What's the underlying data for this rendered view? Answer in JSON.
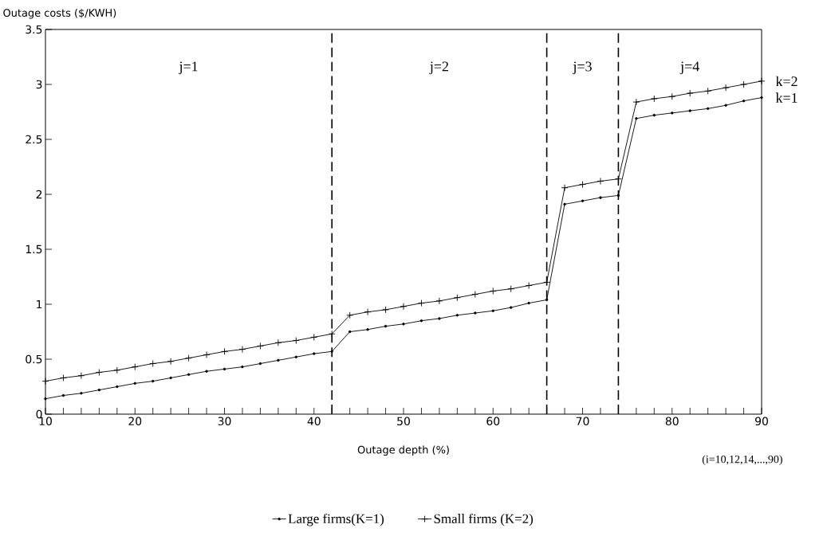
{
  "chart_data": {
    "type": "line",
    "xlabel": "Outage depth (%)",
    "ylabel": "Outage costs ($/KWH)",
    "xlim": [
      10,
      90
    ],
    "ylim": [
      0,
      3.5
    ],
    "xticks": [
      10,
      {
        "value": 12,
        "label": null
      },
      {
        "value": 14,
        "label": null
      },
      {
        "value": 16,
        "label": null
      },
      {
        "value": 18,
        "label": null
      },
      20,
      {
        "value": 22,
        "label": null
      },
      {
        "value": 24,
        "label": null
      },
      {
        "value": 26,
        "label": null
      },
      {
        "value": 28,
        "label": null
      },
      30,
      {
        "value": 32,
        "label": null
      },
      {
        "value": 34,
        "label": null
      },
      {
        "value": 36,
        "label": null
      },
      {
        "value": 38,
        "label": null
      },
      40,
      {
        "value": 42,
        "label": null
      },
      {
        "value": 44,
        "label": null
      },
      {
        "value": 46,
        "label": null
      },
      {
        "value": 48,
        "label": null
      },
      50,
      {
        "value": 52,
        "label": null
      },
      {
        "value": 54,
        "label": null
      },
      {
        "value": 56,
        "label": null
      },
      {
        "value": 58,
        "label": null
      },
      60,
      {
        "value": 62,
        "label": null
      },
      {
        "value": 64,
        "label": null
      },
      {
        "value": 66,
        "label": null
      },
      {
        "value": 68,
        "label": null
      },
      70,
      {
        "value": 72,
        "label": null
      },
      {
        "value": 74,
        "label": null
      },
      {
        "value": 76,
        "label": null
      },
      {
        "value": 78,
        "label": null
      },
      80,
      {
        "value": 82,
        "label": null
      },
      {
        "value": 84,
        "label": null
      },
      {
        "value": 86,
        "label": null
      },
      {
        "value": 88,
        "label": null
      },
      90
    ],
    "yticks": [
      0,
      0.5,
      1,
      1.5,
      2,
      2.5,
      3,
      3.5
    ],
    "x": [
      10,
      12,
      14,
      16,
      18,
      20,
      22,
      24,
      26,
      28,
      30,
      32,
      34,
      36,
      38,
      40,
      42,
      44,
      46,
      48,
      50,
      52,
      54,
      56,
      58,
      60,
      62,
      64,
      66,
      68,
      70,
      72,
      74,
      76,
      78,
      80,
      82,
      84,
      86,
      88,
      90
    ],
    "series": [
      {
        "name": "Large firms(K=1)",
        "color": "#000000",
        "marker": "circle",
        "values": [
          0.14,
          0.17,
          0.19,
          0.22,
          0.25,
          0.28,
          0.3,
          0.33,
          0.36,
          0.39,
          0.41,
          0.43,
          0.46,
          0.49,
          0.52,
          0.55,
          0.57,
          0.75,
          0.77,
          0.8,
          0.82,
          0.85,
          0.87,
          0.9,
          0.92,
          0.94,
          0.97,
          1.01,
          1.04,
          1.91,
          1.94,
          1.97,
          1.99,
          2.69,
          2.72,
          2.74,
          2.76,
          2.78,
          2.81,
          2.85,
          2.88
        ]
      },
      {
        "name": "Small firms (K=2)",
        "color": "#000000",
        "marker": "cross",
        "values": [
          0.3,
          0.33,
          0.35,
          0.38,
          0.4,
          0.43,
          0.46,
          0.48,
          0.51,
          0.54,
          0.57,
          0.59,
          0.62,
          0.65,
          0.67,
          0.7,
          0.73,
          0.9,
          0.93,
          0.95,
          0.98,
          1.01,
          1.03,
          1.06,
          1.09,
          1.12,
          1.14,
          1.17,
          1.2,
          2.06,
          2.09,
          2.12,
          2.14,
          2.84,
          2.87,
          2.89,
          2.92,
          2.94,
          2.97,
          3.0,
          3.03
        ]
      }
    ],
    "ref_lines": [
      {
        "axis": "x",
        "value": 42,
        "line_style": "dashed"
      },
      {
        "axis": "x",
        "value": 66,
        "line_style": "dashed"
      },
      {
        "axis": "x",
        "value": 74,
        "line_style": "dashed"
      }
    ],
    "annotations": [
      "j=1",
      "j=2",
      "j=3",
      "j=4",
      "(i=10,12,14,...,90)",
      {
        "text": "k=2",
        "x": 90,
        "y": 3.03
      },
      {
        "text": "k=1",
        "x": 90,
        "y": 2.88
      }
    ],
    "legend": "bottom",
    "grid": false
  }
}
